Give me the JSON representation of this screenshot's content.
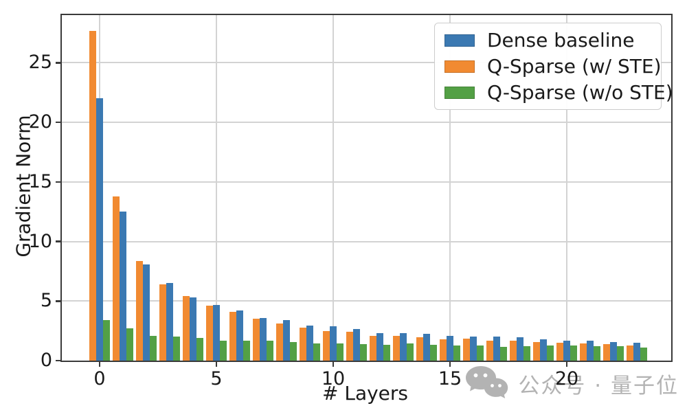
{
  "chart_data": {
    "type": "bar",
    "xlabel": "# Layers",
    "ylabel": "Gradient Norm",
    "x_ticks": [
      0,
      5,
      10,
      15,
      20
    ],
    "y_ticks": [
      0,
      5,
      10,
      15,
      20,
      25
    ],
    "ylim": [
      0,
      29
    ],
    "grid": true,
    "legend_position": "upper right",
    "categories": [
      0,
      1,
      2,
      3,
      4,
      5,
      6,
      7,
      8,
      9,
      10,
      11,
      12,
      13,
      14,
      15,
      16,
      17,
      18,
      19,
      20,
      21,
      22,
      23
    ],
    "series": [
      {
        "name": "Dense baseline",
        "color": "#3b79b2",
        "values": [
          22.0,
          12.5,
          8.1,
          6.5,
          5.3,
          4.65,
          4.2,
          3.6,
          3.4,
          2.95,
          2.9,
          2.65,
          2.3,
          2.3,
          2.25,
          2.05,
          2.0,
          2.0,
          1.95,
          1.8,
          1.65,
          1.7,
          1.55,
          1.5
        ]
      },
      {
        "name": "Q-Sparse (w/ STE)",
        "color": "#f18a31",
        "values": [
          27.7,
          13.8,
          8.35,
          6.4,
          5.4,
          4.6,
          4.1,
          3.5,
          3.1,
          2.75,
          2.5,
          2.4,
          2.1,
          2.1,
          1.95,
          1.8,
          1.85,
          1.65,
          1.65,
          1.55,
          1.5,
          1.45,
          1.4,
          1.25
        ]
      },
      {
        "name": "Q-Sparse (w/o STE)",
        "color": "#53a045",
        "values": [
          3.4,
          2.7,
          2.1,
          2.0,
          1.9,
          1.7,
          1.65,
          1.65,
          1.55,
          1.45,
          1.45,
          1.4,
          1.35,
          1.45,
          1.3,
          1.25,
          1.25,
          1.15,
          1.2,
          1.25,
          1.25,
          1.2,
          1.2,
          1.1
        ]
      }
    ],
    "bar_order": [
      "Q-Sparse (w/ STE)",
      "Dense baseline",
      "Q-Sparse (w/o STE)"
    ]
  },
  "watermark": {
    "icon": "wechat-icon",
    "text": "公众号 · 量子位"
  },
  "colors": {
    "grid": "#d3d3d3",
    "spine": "#3a3a3a",
    "tick_label": "#1a1a1a",
    "watermark": "#b3b3b3",
    "background": "#ffffff"
  }
}
